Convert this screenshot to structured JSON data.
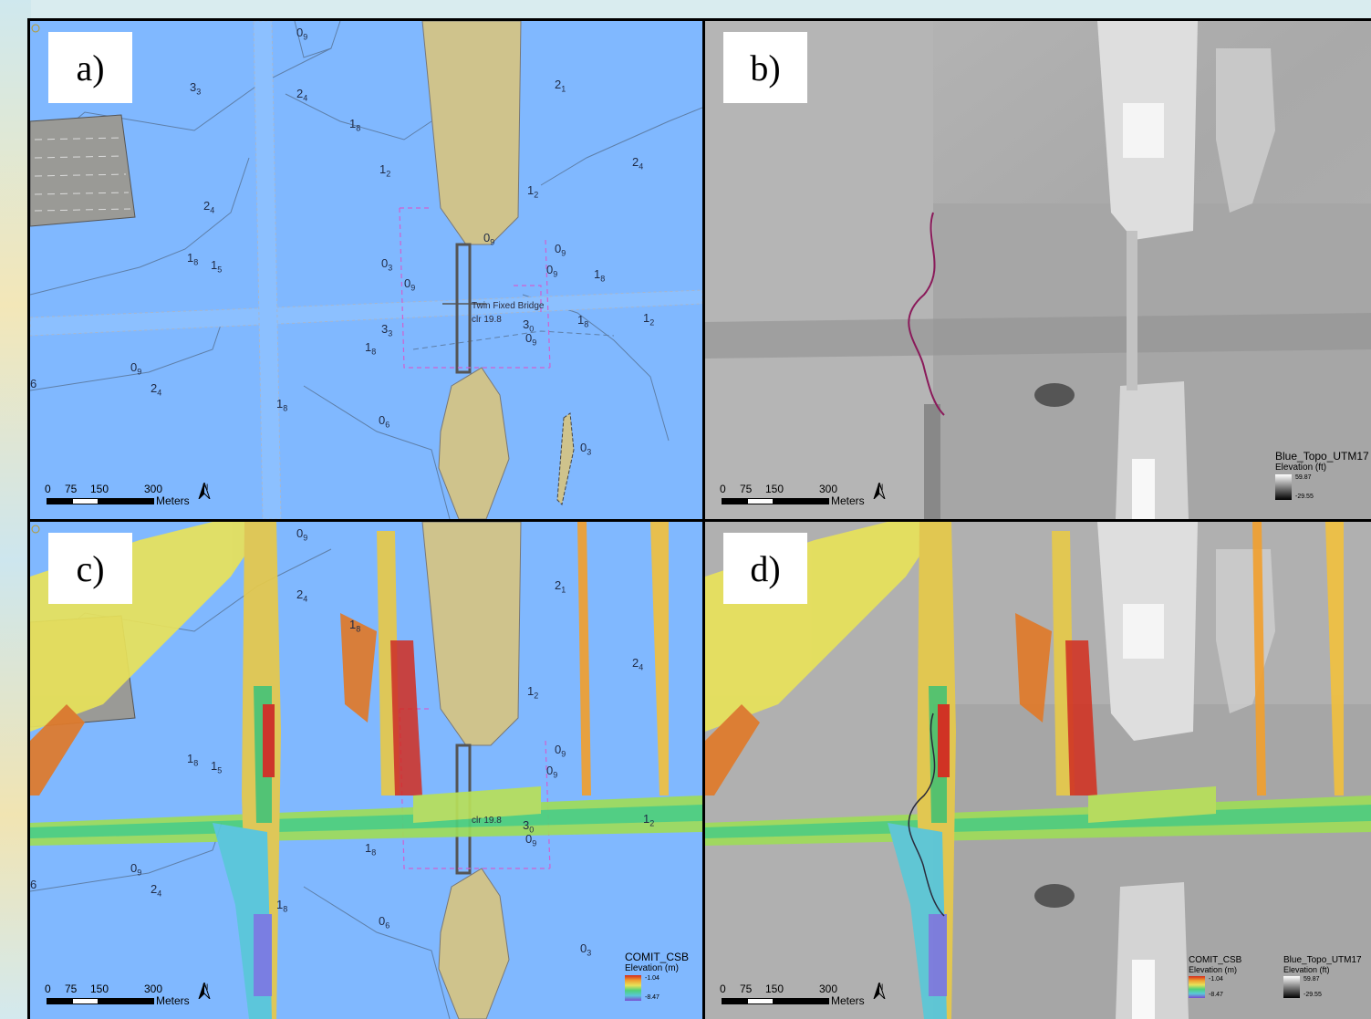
{
  "panels": {
    "a": {
      "label": "a)"
    },
    "b": {
      "label": "b)"
    },
    "c": {
      "label": "c)"
    },
    "d": {
      "label": "d)"
    }
  },
  "soundings": [
    {
      "main": "0",
      "sub": "9"
    },
    {
      "main": "3",
      "sub": "3"
    },
    {
      "main": "2",
      "sub": "4"
    },
    {
      "main": "1",
      "sub": "8"
    },
    {
      "main": "2",
      "sub": "1"
    },
    {
      "main": "1",
      "sub": "2"
    },
    {
      "main": "2",
      "sub": "4"
    },
    {
      "main": "1",
      "sub": "2"
    },
    {
      "main": "2",
      "sub": "4"
    },
    {
      "main": "1",
      "sub": "8"
    },
    {
      "main": "1",
      "sub": "5"
    },
    {
      "main": "0",
      "sub": "9"
    },
    {
      "main": "0",
      "sub": "3"
    },
    {
      "main": "0",
      "sub": "9"
    },
    {
      "main": "0",
      "sub": "9"
    },
    {
      "main": "0",
      "sub": "9"
    },
    {
      "main": "1",
      "sub": "8"
    },
    {
      "main": "3",
      "sub": "3"
    },
    {
      "main": "3",
      "sub": "0"
    },
    {
      "main": "1",
      "sub": "8"
    },
    {
      "main": "1",
      "sub": "8"
    },
    {
      "main": "1",
      "sub": "2"
    },
    {
      "main": "0",
      "sub": "9"
    },
    {
      "main": "0",
      "sub": "9"
    },
    {
      "main": "2",
      "sub": "4"
    },
    {
      "main": "1",
      "sub": "8"
    },
    {
      "main": "0",
      "sub": "6"
    },
    {
      "main": "0",
      "sub": "3"
    },
    {
      "main": "6",
      "sub": ""
    }
  ],
  "bridge": {
    "name": "Twin Fixed Bridge",
    "clearance": "clr 19.8"
  },
  "scalebar": {
    "ticks": [
      "0",
      "75",
      "150",
      "300"
    ],
    "unit": "Meters"
  },
  "north_arrow": "N",
  "legends": {
    "blue_topo": {
      "title": "Blue_Topo_UTM17",
      "title_short": "Blue_Topo_UTM17",
      "subtitle": "Elevation (ft)",
      "max": "59.87",
      "min": "-29.55"
    },
    "comit": {
      "title": "COMIT_CSB",
      "subtitle": "Elevation (m)",
      "max": "-1.04",
      "min": "-8.47"
    }
  },
  "colors": {
    "water": "#80b8ff",
    "land": "#cfc38c",
    "grey_area": "#9a9a96",
    "track": "#8a1a5a",
    "magenta": "#d060d0"
  }
}
